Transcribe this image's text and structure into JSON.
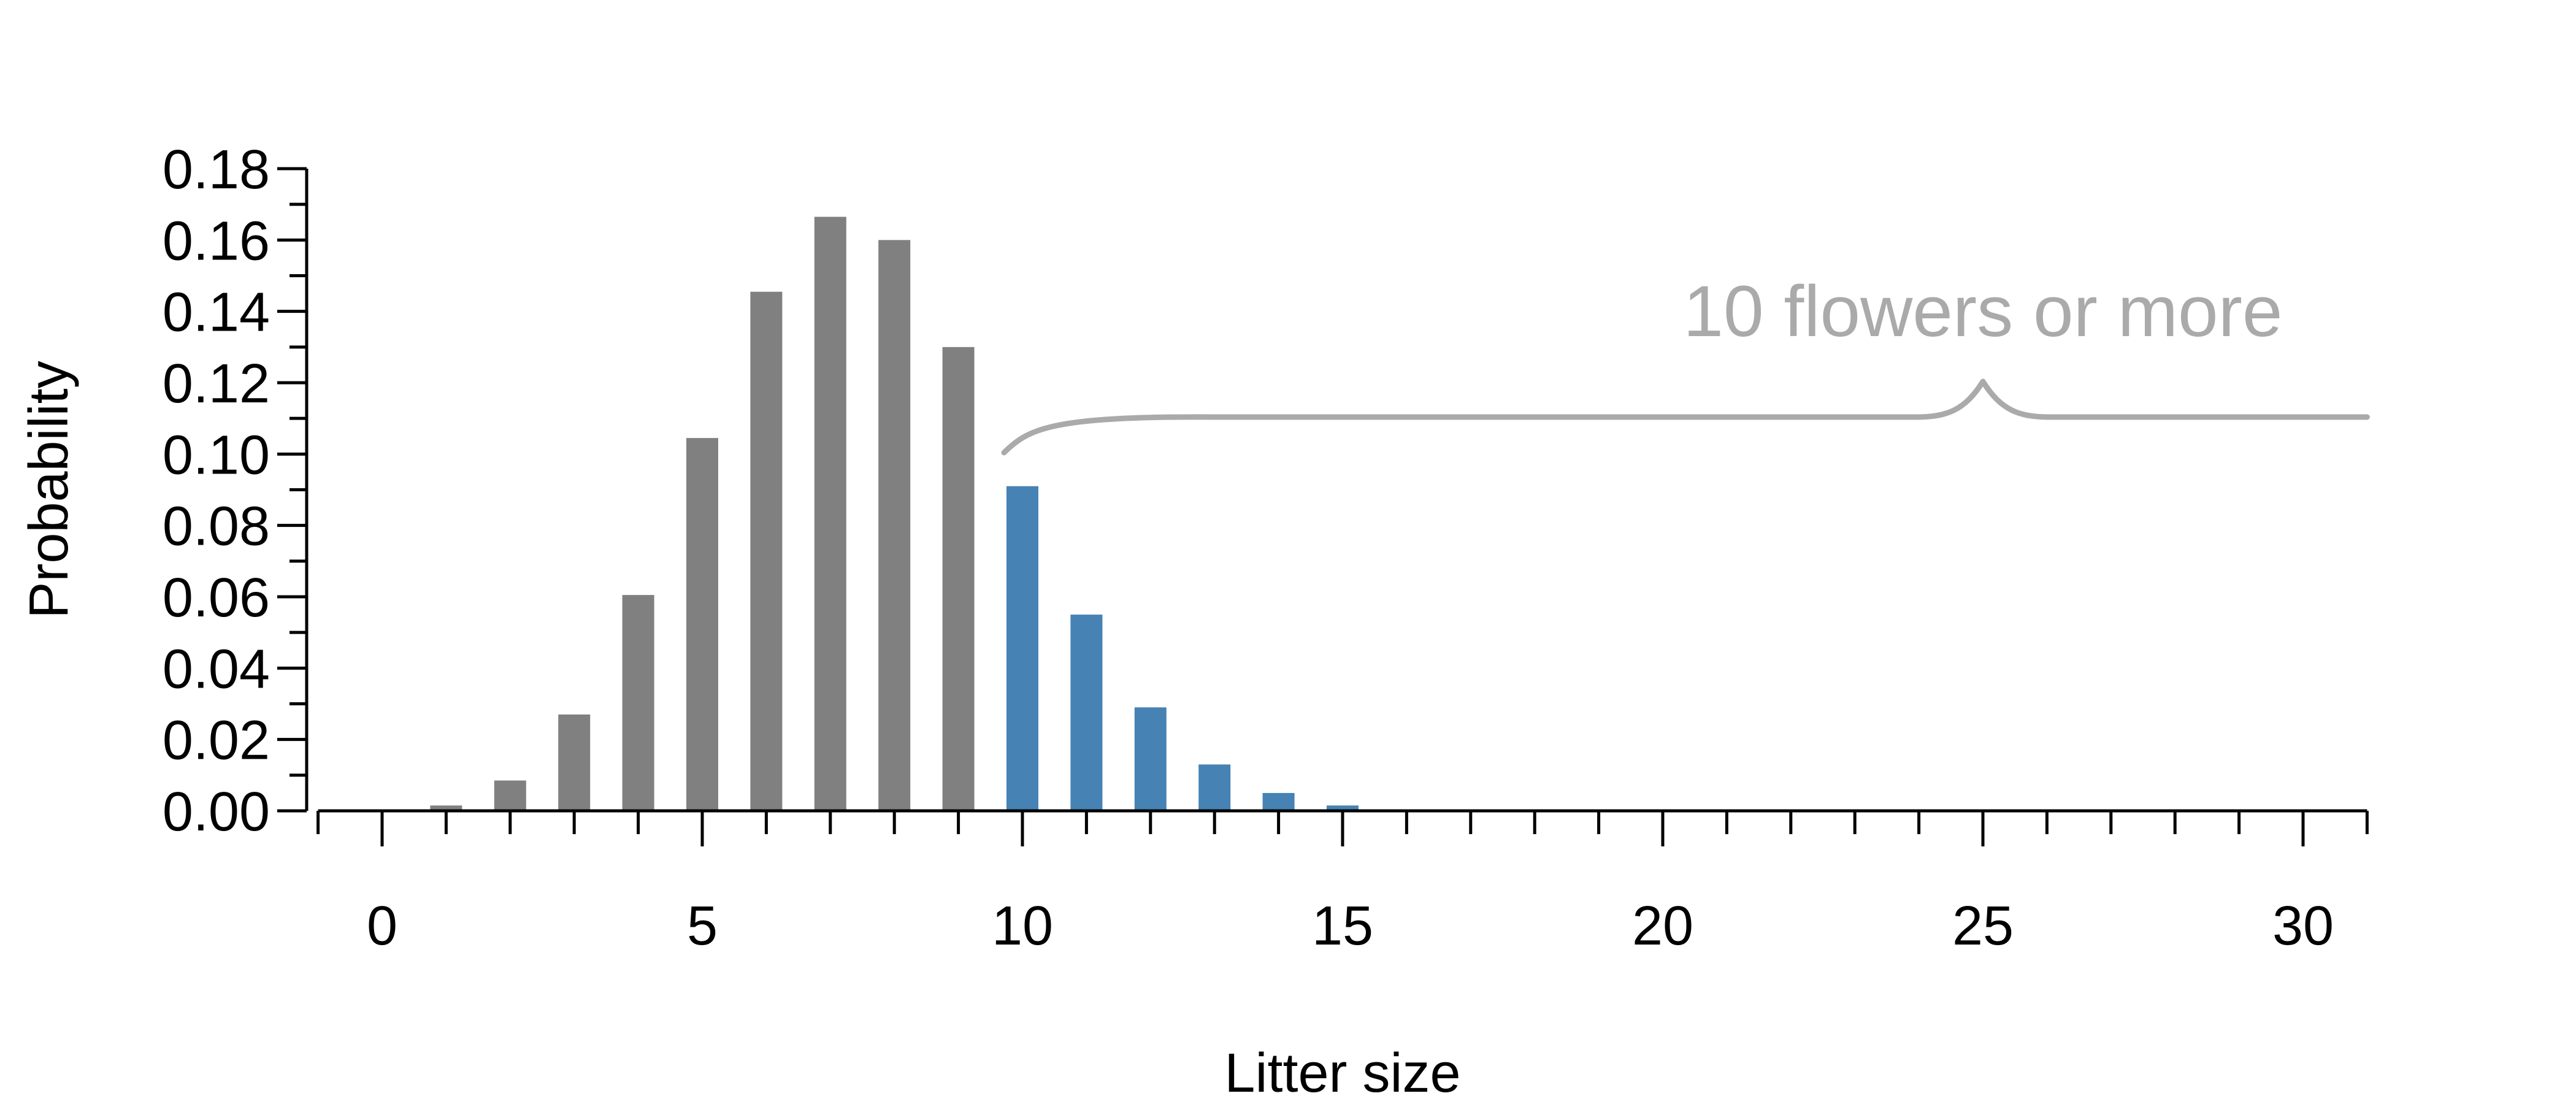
{
  "chart_data": {
    "type": "bar",
    "xlabel": "Litter size",
    "ylabel": "Probability",
    "x": [
      0,
      1,
      2,
      3,
      4,
      5,
      6,
      7,
      8,
      9,
      10,
      11,
      12,
      13,
      14,
      15,
      16,
      17,
      18,
      19,
      20,
      21,
      22,
      23,
      24,
      25,
      26,
      27,
      28,
      29,
      30,
      31
    ],
    "values": [
      0.0002,
      0.0015,
      0.0085,
      0.027,
      0.0605,
      0.1045,
      0.1455,
      0.1665,
      0.16,
      0.13,
      0.091,
      0.055,
      0.029,
      0.013,
      0.005,
      0.0015,
      0,
      0,
      0,
      0,
      0,
      0,
      0,
      0,
      0,
      0,
      0,
      0,
      0,
      0,
      0,
      0
    ],
    "highlight_from": 10,
    "colors": {
      "base": "#808080",
      "highlight": "#4682b4",
      "annotation": "#aaaaaa"
    },
    "xlim": [
      -1,
      31
    ],
    "ylim": [
      0,
      0.18
    ],
    "xticks": [
      0,
      5,
      10,
      15,
      20,
      25,
      30
    ],
    "yticks": [
      "0.00",
      "0.02",
      "0.04",
      "0.06",
      "0.08",
      "0.10",
      "0.12",
      "0.14",
      "0.16",
      "0.18"
    ],
    "annotation": {
      "text": "10 flowers or more",
      "brace_from": 10,
      "brace_center": 25,
      "brace_to": 31
    }
  }
}
